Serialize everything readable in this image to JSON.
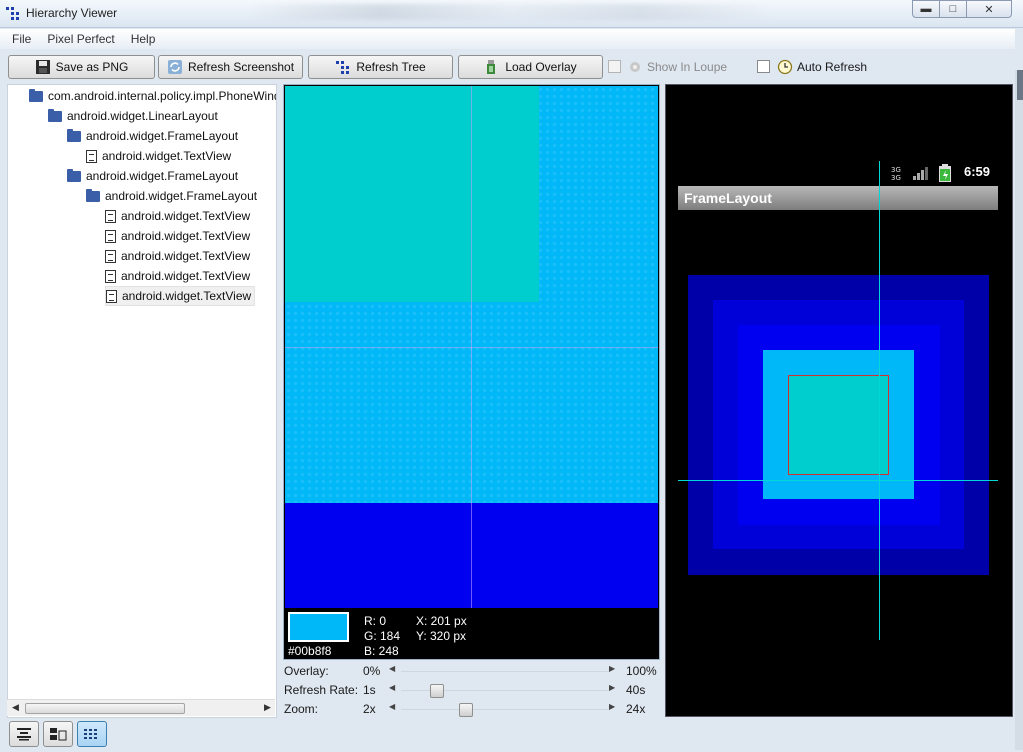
{
  "window": {
    "title": "Hierarchy Viewer"
  },
  "menu": [
    "File",
    "Pixel Perfect",
    "Help"
  ],
  "toolbar": {
    "save_png": "Save as PNG",
    "refresh_screenshot": "Refresh Screenshot",
    "refresh_tree": "Refresh Tree",
    "load_overlay": "Load Overlay",
    "show_in_loupe": {
      "label": "Show In Loupe",
      "checked": false,
      "enabled": false
    },
    "auto_refresh": {
      "label": "Auto Refresh",
      "checked": false
    }
  },
  "tree": [
    {
      "label": "com.android.internal.policy.impl.PhoneWindow$DecorView",
      "depth": 0,
      "icon": "folder-icon"
    },
    {
      "label": "android.widget.LinearLayout",
      "depth": 1,
      "icon": "folder-icon"
    },
    {
      "label": "android.widget.FrameLayout",
      "depth": 2,
      "icon": "folder-icon"
    },
    {
      "label": "android.widget.TextView",
      "depth": 3,
      "icon": "document-icon"
    },
    {
      "label": "android.widget.FrameLayout",
      "depth": 2,
      "icon": "folder-icon"
    },
    {
      "label": "android.widget.FrameLayout",
      "depth": 3,
      "icon": "folder-icon"
    },
    {
      "label": "android.widget.TextView",
      "depth": 4,
      "icon": "document-icon"
    },
    {
      "label": "android.widget.TextView",
      "depth": 4,
      "icon": "document-icon"
    },
    {
      "label": "android.widget.TextView",
      "depth": 4,
      "icon": "document-icon"
    },
    {
      "label": "android.widget.TextView",
      "depth": 4,
      "icon": "document-icon"
    },
    {
      "label": "android.widget.TextView",
      "depth": 4,
      "icon": "document-icon",
      "selected": true
    }
  ],
  "loupe": {
    "color_hex": "#00b8f8",
    "r": "R: 0",
    "g": "G: 184",
    "b": "B: 248",
    "x": "X: 201 px",
    "y": "Y: 320 px",
    "colors": {
      "cyan": "#00b8f8",
      "teal": "#00cdcd",
      "blue": "#0000f0"
    }
  },
  "sliders": {
    "overlay": {
      "label": "Overlay:",
      "min": "0%",
      "max": "100%",
      "value": 0.0
    },
    "refresh_rate": {
      "label": "Refresh Rate:",
      "min": "1s",
      "max": "40s",
      "value": 0.15
    },
    "zoom": {
      "label": "Zoom:",
      "min": "2x",
      "max": "24x",
      "value": 0.3
    }
  },
  "preview": {
    "clock": "6:59",
    "app_title": "FrameLayout",
    "colors": [
      "#0000a8",
      "#0000d8",
      "#0000f0",
      "#00b8f8",
      "#00cdcd"
    ]
  }
}
